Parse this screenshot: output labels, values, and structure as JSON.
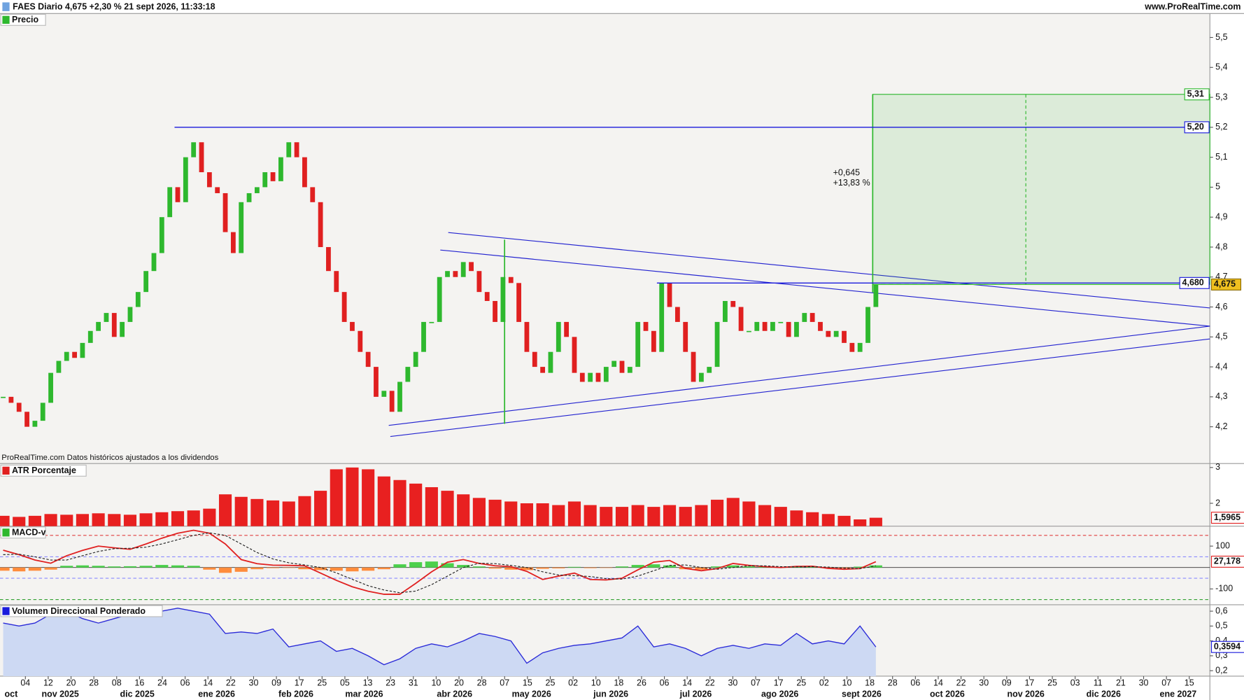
{
  "header": {
    "title": "FAES Diario 4,675 +2,30 % 21 sept 2026, 11:33:18",
    "site": "www.ProRealTime.com"
  },
  "source_note": "ProRealTime.com Datos históricos ajustados a los dividendos",
  "time_axis": {
    "day_labels": [
      "04",
      "12",
      "20",
      "28",
      "08",
      "16",
      "24",
      "06",
      "14",
      "22",
      "30",
      "09",
      "17",
      "25",
      "05",
      "13",
      "23",
      "31",
      "10",
      "20",
      "28",
      "07",
      "15",
      "25",
      "02",
      "10",
      "18",
      "26",
      "06",
      "14",
      "22",
      "30",
      "07",
      "17",
      "25",
      "02",
      "10",
      "18",
      "28",
      "06",
      "14",
      "22",
      "30",
      "09",
      "17",
      "25",
      "03",
      "11",
      "21",
      "30",
      "07",
      "15"
    ],
    "month_labels": [
      "oct",
      "nov 2025",
      "dic 2025",
      "ene 2026",
      "feb 2026",
      "mar 2026",
      "abr 2026",
      "may 2026",
      "jun 2026",
      "jul 2026",
      "ago 2026",
      "sept 2026",
      "oct 2026",
      "nov 2026",
      "dic 2026",
      "ene 2027"
    ]
  },
  "chart_data": [
    {
      "type": "candlestick",
      "title": "Precio",
      "title_color": "#2eb82e",
      "color_up": "#2eb82e",
      "color_down": "#e02020",
      "values": [
        4.3,
        4.28,
        4.25,
        4.2,
        4.22,
        4.28,
        4.38,
        4.42,
        4.45,
        4.43,
        4.48,
        4.52,
        4.55,
        4.58,
        4.5,
        4.55,
        4.6,
        4.65,
        4.72,
        4.78,
        4.9,
        5.0,
        4.95,
        5.1,
        5.15,
        5.05,
        5.0,
        4.98,
        4.85,
        4.78,
        4.95,
        4.98,
        5.0,
        5.05,
        5.02,
        5.1,
        5.15,
        5.1,
        5.0,
        4.95,
        4.8,
        4.72,
        4.65,
        4.55,
        4.52,
        4.45,
        4.4,
        4.3,
        4.32,
        4.25,
        4.35,
        4.4,
        4.45,
        4.55,
        4.55,
        4.7,
        4.72,
        4.7,
        4.75,
        4.72,
        4.65,
        4.62,
        4.55,
        4.7,
        4.68,
        4.55,
        4.45,
        4.4,
        4.38,
        4.45,
        4.55,
        4.5,
        4.38,
        4.35,
        4.38,
        4.35,
        4.4,
        4.42,
        4.38,
        4.4,
        4.55,
        4.52,
        4.45,
        4.68,
        4.6,
        4.55,
        4.45,
        4.35,
        4.38,
        4.4,
        4.55,
        4.62,
        4.6,
        4.52,
        4.52,
        4.55,
        4.52,
        4.55,
        4.55,
        4.5,
        4.55,
        4.58,
        4.55,
        4.52,
        4.5,
        4.52,
        4.48,
        4.45,
        4.48,
        4.6,
        4.675
      ],
      "last_value_label": "4,675",
      "last_value_color": "#f0c020",
      "ylim": [
        4.08,
        5.58
      ],
      "yticks": [
        {
          "value": 5.5,
          "label": "5,5"
        },
        {
          "value": 5.4,
          "label": "5,4"
        },
        {
          "value": 5.3,
          "label": "5,3"
        },
        {
          "value": 5.2,
          "label": "5,2"
        },
        {
          "value": 5.1,
          "label": "5,1"
        },
        5,
        {
          "value": 4.9,
          "label": "4,9"
        },
        {
          "value": 4.8,
          "label": "4,8"
        },
        {
          "value": 4.7,
          "label": "4,7"
        },
        {
          "value": 4.6,
          "label": "4,6"
        },
        {
          "value": 4.5,
          "label": "4,5"
        },
        {
          "value": 4.4,
          "label": "4,4"
        },
        {
          "value": 4.3,
          "label": "4,3"
        },
        {
          "value": 4.2,
          "label": "4,2"
        }
      ],
      "levels": [
        {
          "value": 5.31,
          "label": "5,31",
          "color": "#2eb82e"
        },
        {
          "value": 5.2,
          "label": "5,20",
          "color": "#1a1adc"
        },
        {
          "value": 4.68,
          "label": "4,680",
          "color": "#1a1adc"
        }
      ],
      "target_gain": "+0,645",
      "target_gain_pct": "+13,83 %"
    },
    {
      "type": "bar",
      "title": "ATR Porcentaje",
      "title_color": "#e02020",
      "color": "#e82020",
      "values": [
        1.65,
        1.62,
        1.65,
        1.7,
        1.68,
        1.7,
        1.72,
        1.7,
        1.68,
        1.72,
        1.75,
        1.78,
        1.8,
        1.85,
        2.25,
        2.18,
        2.12,
        2.08,
        2.05,
        2.2,
        2.35,
        2.95,
        3.0,
        2.95,
        2.75,
        2.65,
        2.55,
        2.45,
        2.35,
        2.25,
        2.15,
        2.1,
        2.05,
        2.0,
        2.0,
        1.95,
        2.05,
        1.95,
        1.9,
        1.9,
        1.95,
        1.9,
        1.95,
        1.9,
        1.95,
        2.1,
        2.15,
        2.05,
        1.95,
        1.9,
        1.8,
        1.75,
        1.7,
        1.65,
        1.55,
        1.5965
      ],
      "last_value_label": "1,5965",
      "last_value_color": "#e02020",
      "ylim": [
        1.36,
        3.09
      ],
      "yticks": [
        3,
        2
      ]
    },
    {
      "type": "line",
      "title": "MACD-v",
      "title_color": "#2eb82e",
      "series": [
        {
          "color": "#e02020",
          "style": "solid",
          "values": [
            81,
            60,
            35,
            20,
            55,
            80,
            100,
            92,
            85,
            110,
            137,
            160,
            174,
            160,
            110,
            37,
            18,
            11,
            10,
            8,
            -26,
            -60,
            -90,
            -111,
            -125,
            -125,
            -74,
            -20,
            25,
            37,
            19,
            8,
            4,
            -18,
            -56,
            -40,
            -26,
            -56,
            -58,
            -50,
            -11,
            25,
            33,
            -4,
            -15,
            -5,
            19,
            10,
            4,
            0,
            5,
            6,
            -4,
            -8,
            -5,
            27.178
          ],
          "last_value_label": "27,178"
        },
        {
          "color": "#222222",
          "style": "dashed",
          "values": [
            60,
            62,
            50,
            35,
            35,
            55,
            75,
            88,
            90,
            95,
            110,
            130,
            150,
            162,
            150,
            110,
            70,
            40,
            22,
            12,
            0,
            -25,
            -55,
            -85,
            -105,
            -118,
            -110,
            -80,
            -40,
            0,
            20,
            18,
            10,
            0,
            -20,
            -35,
            -38,
            -42,
            -52,
            -54,
            -40,
            -15,
            10,
            12,
            0,
            -8,
            0,
            8,
            8,
            4,
            3,
            4,
            2,
            -3,
            -5,
            8
          ]
        }
      ],
      "histogram": {
        "color_up": "#4cd04c",
        "color_down": "#ff8c3c",
        "values": [
          -15,
          -18,
          -15,
          -10,
          8,
          10,
          8,
          5,
          6,
          8,
          12,
          10,
          8,
          -10,
          -25,
          -20,
          -8,
          -3,
          -2,
          -8,
          -12,
          -15,
          -18,
          -15,
          -8,
          15,
          25,
          28,
          20,
          12,
          5,
          -5,
          -10,
          -12,
          -6,
          -4,
          3,
          -3,
          -2,
          5,
          12,
          15,
          10,
          -8,
          -10,
          5,
          10,
          5,
          3,
          2,
          3,
          2,
          -2,
          -3,
          4,
          10
        ]
      },
      "levels": [
        {
          "value": 150,
          "color": "#e04040"
        },
        {
          "value": 50,
          "color": "#8a8aff"
        },
        {
          "value": -50,
          "color": "#8a8aff"
        },
        {
          "value": -150,
          "color": "#30a030"
        }
      ],
      "ylim": [
        -174,
        193
      ],
      "yticks": [
        100,
        -100
      ]
    },
    {
      "type": "area",
      "title": "Volumen Direccional Ponderado",
      "title_color": "#1a1adc",
      "color": "#2a2ad8",
      "fill": "#cdd9f3",
      "values": [
        0.52,
        0.5,
        0.52,
        0.58,
        0.6,
        0.55,
        0.52,
        0.55,
        0.58,
        0.62,
        0.6,
        0.62,
        0.6,
        0.58,
        0.45,
        0.46,
        0.45,
        0.48,
        0.36,
        0.38,
        0.4,
        0.33,
        0.35,
        0.3,
        0.24,
        0.28,
        0.35,
        0.38,
        0.36,
        0.4,
        0.45,
        0.43,
        0.4,
        0.25,
        0.32,
        0.35,
        0.37,
        0.38,
        0.4,
        0.42,
        0.5,
        0.36,
        0.38,
        0.35,
        0.3,
        0.35,
        0.37,
        0.35,
        0.38,
        0.37,
        0.45,
        0.38,
        0.4,
        0.38,
        0.5,
        0.3594
      ],
      "last_value_label": "0,3594",
      "last_value_color": "#1a1adc",
      "ylim": [
        0.163,
        0.643
      ],
      "yticks": [
        {
          "value": 0.6,
          "label": "0,6"
        },
        {
          "value": 0.5,
          "label": "0,5"
        },
        {
          "value": 0.4,
          "label": "0,4"
        },
        {
          "value": 0.3,
          "label": "0,3"
        },
        {
          "value": 0.2,
          "label": "0,2"
        }
      ]
    }
  ]
}
